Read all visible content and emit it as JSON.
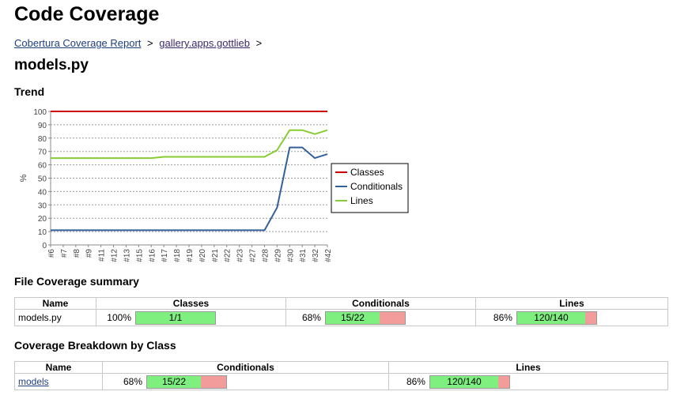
{
  "header": {
    "title": "Code Coverage"
  },
  "breadcrumb": {
    "items": [
      "Cobertura Coverage Report",
      "gallery.apps.gottlieb"
    ],
    "separator": ">"
  },
  "file": {
    "name": "models.py"
  },
  "trend": {
    "heading": "Trend",
    "chart_data": {
      "type": "line",
      "ylabel": "%",
      "ylim": [
        0,
        100
      ],
      "yticks": [
        0,
        10,
        20,
        30,
        40,
        50,
        60,
        70,
        80,
        90,
        100
      ],
      "grid": true,
      "legend_position": "right",
      "categories": [
        "#6",
        "#7",
        "#8",
        "#9",
        "#11",
        "#12",
        "#13",
        "#15",
        "#16",
        "#17",
        "#18",
        "#19",
        "#20",
        "#21",
        "#22",
        "#23",
        "#27",
        "#28",
        "#29",
        "#30",
        "#31",
        "#32",
        "#42"
      ],
      "series": [
        {
          "name": "Classes",
          "color": "#cc0000",
          "values": [
            100,
            100,
            100,
            100,
            100,
            100,
            100,
            100,
            100,
            100,
            100,
            100,
            100,
            100,
            100,
            100,
            100,
            100,
            100,
            100,
            100,
            100,
            100
          ]
        },
        {
          "name": "Conditionals",
          "color": "#33609a",
          "values": [
            11,
            11,
            11,
            11,
            11,
            11,
            11,
            11,
            11,
            11,
            11,
            11,
            11,
            11,
            11,
            11,
            11,
            11,
            28,
            73,
            73,
            65,
            68
          ]
        },
        {
          "name": "Lines",
          "color": "#88cc33",
          "values": [
            65,
            65,
            65,
            65,
            65,
            65,
            65,
            65,
            65,
            66,
            66,
            66,
            66,
            66,
            66,
            66,
            66,
            66,
            71,
            86,
            86,
            83,
            86
          ]
        }
      ]
    }
  },
  "summary": {
    "heading": "File Coverage summary",
    "columns": [
      "Name",
      "Classes",
      "Conditionals",
      "Lines"
    ],
    "row": {
      "name": "models.py",
      "classes": {
        "pct": "100%",
        "label": "1/1",
        "fraction": 1.0
      },
      "conditionals": {
        "pct": "68%",
        "label": "15/22",
        "fraction": 0.68
      },
      "lines": {
        "pct": "86%",
        "label": "120/140",
        "fraction": 0.86
      }
    }
  },
  "breakdown": {
    "heading": "Coverage Breakdown by Class",
    "columns": [
      "Name",
      "Conditionals",
      "Lines"
    ],
    "row": {
      "name": "models",
      "conditionals": {
        "pct": "68%",
        "label": "15/22",
        "fraction": 0.68
      },
      "lines": {
        "pct": "86%",
        "label": "120/140",
        "fraction": 0.86
      }
    }
  },
  "colors": {
    "covered": "#7ff07f",
    "uncovered": "#f29c9c",
    "link": "#1f3f7f"
  }
}
